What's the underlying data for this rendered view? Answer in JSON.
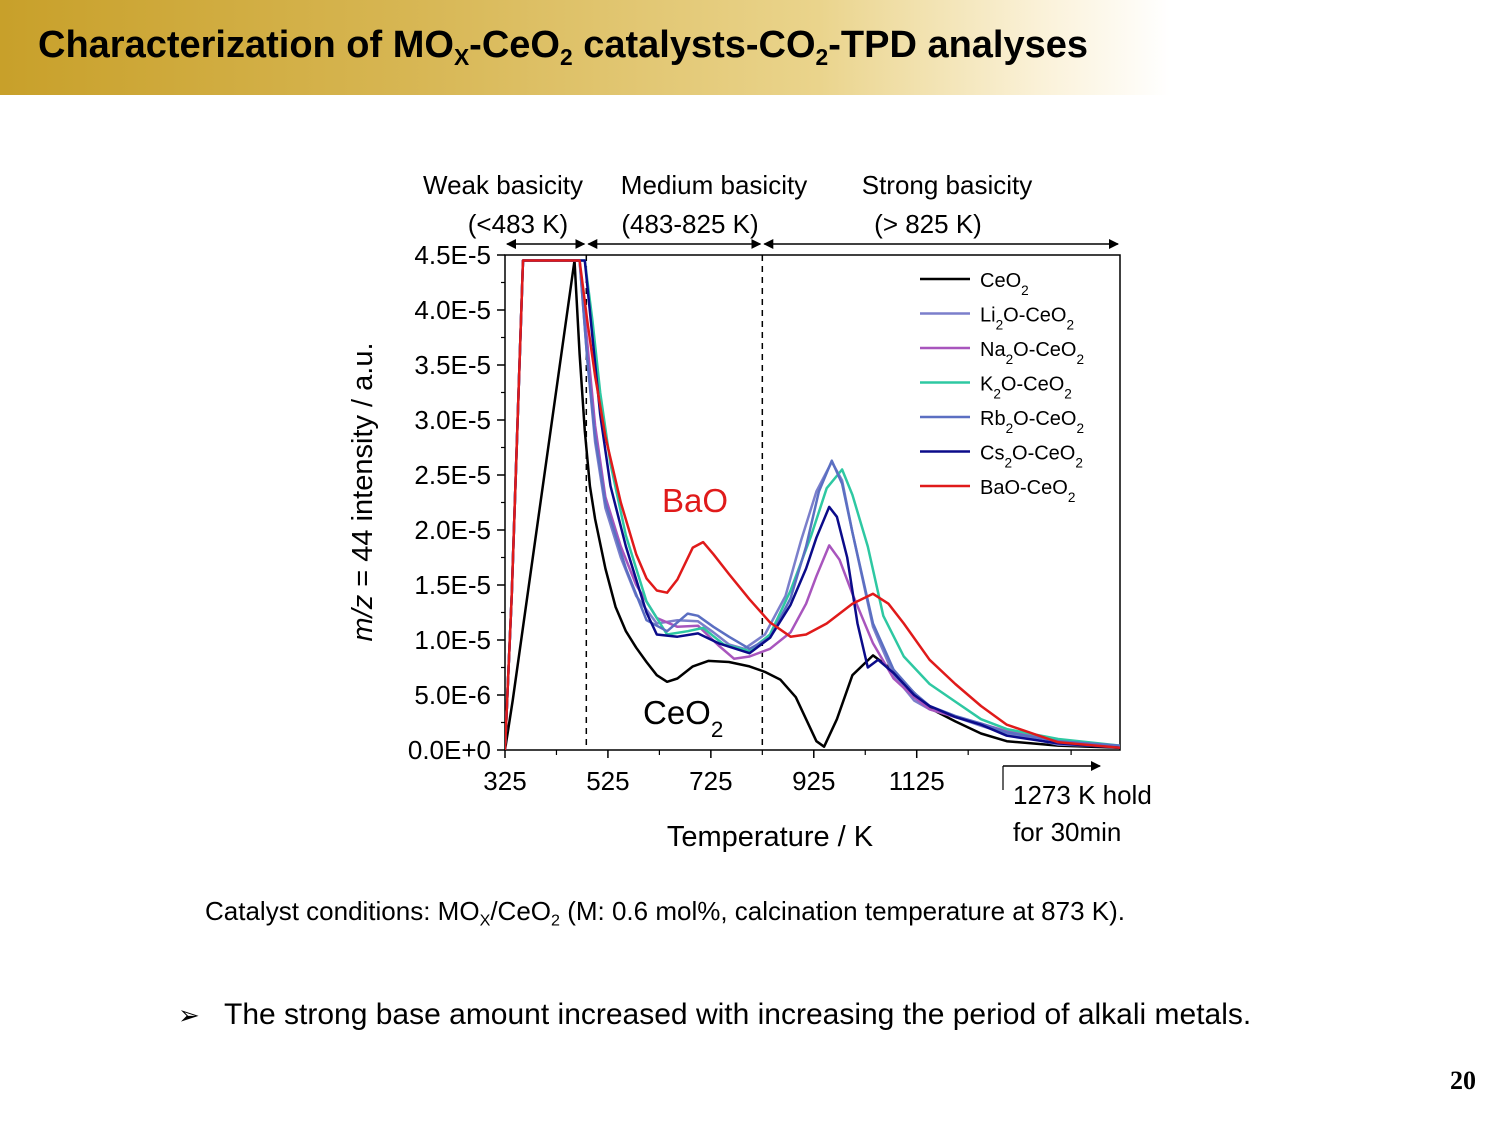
{
  "slide": {
    "title": {
      "part1": "Characterization of MO",
      "sub1": "X",
      "part2": "-CeO",
      "sub2": "2",
      "part3": " catalysts-CO",
      "sub3": "2",
      "part4": "-TPD analyses"
    },
    "conditions": {
      "part1": "Catalyst conditions: MO",
      "sub1": "X",
      "part2": "/CeO",
      "sub2": "2",
      "part3": " (M: 0.6 mol%, calcination temperature at 873 K)."
    },
    "bullet_marker": "➢",
    "bullet": "The strong base amount increased with increasing the period of alkali metals.",
    "page_number": "20"
  },
  "chart_data": {
    "type": "line",
    "ylabel_italic": "m/z",
    "ylabel_rest": " = 44 intensity / a.u.",
    "xlabel": "Temperature / K",
    "xlim": [
      325,
      1520
    ],
    "ylim": [
      0,
      4.5e-05
    ],
    "x_ticks": [
      325,
      525,
      725,
      925,
      1125
    ],
    "x_tick_labels": [
      "325",
      "525",
      "725",
      "925",
      "1125"
    ],
    "y_ticks": [
      0,
      5e-06,
      1e-05,
      1.5e-05,
      2e-05,
      2.5e-05,
      3e-05,
      3.5e-05,
      4e-05,
      4.5e-05
    ],
    "y_tick_labels": [
      "0.0E+0",
      "5.0E-6",
      "1.0E-5",
      "1.5E-5",
      "2.0E-5",
      "2.5E-5",
      "3.0E-5",
      "3.5E-5",
      "4.0E-5",
      "4.5E-5"
    ],
    "region_boundaries": [
      483,
      825
    ],
    "regions": [
      {
        "name": "Weak basicity",
        "range": "(<483 K)"
      },
      {
        "name": "Medium basicity",
        "range": "(483-825 K)"
      },
      {
        "name": "Strong basicity",
        "range": "(> 825 K)"
      }
    ],
    "annotations": {
      "bao": "BaO",
      "ceo2": "CeO",
      "ceo2_sub": "2",
      "hold_line1": "1273 K hold",
      "hold_line2": "for 30min"
    },
    "legend_position": "top-right",
    "series": [
      {
        "name": "CeO2",
        "label": "CeO",
        "sub": "2",
        "color": "#000000",
        "points": [
          [
            325,
            0
          ],
          [
            340,
            4.5e-06
          ],
          [
            460,
            4.45e-05
          ],
          [
            470,
            3.6e-05
          ],
          [
            480,
            2.9e-05
          ],
          [
            490,
            2.4e-05
          ],
          [
            500,
            2.1e-05
          ],
          [
            520,
            1.65e-05
          ],
          [
            540,
            1.3e-05
          ],
          [
            560,
            1.08e-05
          ],
          [
            580,
            9.3e-06
          ],
          [
            600,
            8e-06
          ],
          [
            620,
            6.8e-06
          ],
          [
            640,
            6.2e-06
          ],
          [
            660,
            6.5e-06
          ],
          [
            690,
            7.6e-06
          ],
          [
            720,
            8.1e-06
          ],
          [
            760,
            8e-06
          ],
          [
            800,
            7.6e-06
          ],
          [
            830,
            7.1e-06
          ],
          [
            860,
            6.4e-06
          ],
          [
            890,
            4.8e-06
          ],
          [
            910,
            2.8e-06
          ],
          [
            930,
            8e-07
          ],
          [
            945,
            3e-07
          ],
          [
            970,
            2.8e-06
          ],
          [
            1000,
            6.8e-06
          ],
          [
            1040,
            8.6e-06
          ],
          [
            1080,
            7.2e-06
          ],
          [
            1120,
            5.2e-06
          ],
          [
            1150,
            3.8e-06
          ],
          [
            1200,
            2.6e-06
          ],
          [
            1250,
            1.5e-06
          ],
          [
            1300,
            8e-07
          ],
          [
            1400,
            4e-07
          ],
          [
            1520,
            2e-07
          ]
        ]
      },
      {
        "name": "Li2O-CeO2",
        "label": "Li",
        "sub": "2",
        "label_rest": "O-CeO",
        "sub2": "2",
        "color": "#7b7fcb",
        "points": [
          [
            325,
            0
          ],
          [
            338,
            1.4e-05
          ],
          [
            360,
            4.45e-05
          ],
          [
            470,
            4.45e-05
          ],
          [
            485,
            3.55e-05
          ],
          [
            500,
            2.8e-05
          ],
          [
            520,
            2.2e-05
          ],
          [
            550,
            1.75e-05
          ],
          [
            580,
            1.4e-05
          ],
          [
            620,
            1.15e-05
          ],
          [
            660,
            1.18e-05
          ],
          [
            700,
            1.17e-05
          ],
          [
            730,
            1.07e-05
          ],
          [
            760,
            9.6e-06
          ],
          [
            790,
            9.2e-06
          ],
          [
            830,
            1.05e-05
          ],
          [
            870,
            1.4e-05
          ],
          [
            900,
            1.9e-05
          ],
          [
            930,
            2.35e-05
          ],
          [
            960,
            2.62e-05
          ],
          [
            980,
            2.45e-05
          ],
          [
            1000,
            1.98e-05
          ],
          [
            1040,
            1.12e-05
          ],
          [
            1080,
            6.8e-06
          ],
          [
            1120,
            4.5e-06
          ],
          [
            1150,
            3.7e-06
          ],
          [
            1200,
            3e-06
          ],
          [
            1250,
            2.2e-06
          ],
          [
            1300,
            1.5e-06
          ],
          [
            1400,
            5e-07
          ],
          [
            1520,
            3e-07
          ]
        ]
      },
      {
        "name": "Na2O-CeO2",
        "label": "Na",
        "sub": "2",
        "label_rest": "O-CeO",
        "sub2": "2",
        "color": "#a855bd",
        "points": [
          [
            325,
            0
          ],
          [
            338,
            1.4e-05
          ],
          [
            360,
            4.45e-05
          ],
          [
            470,
            4.45e-05
          ],
          [
            485,
            3.7e-05
          ],
          [
            500,
            2.95e-05
          ],
          [
            520,
            2.3e-05
          ],
          [
            550,
            1.85e-05
          ],
          [
            580,
            1.5e-05
          ],
          [
            620,
            1.2e-05
          ],
          [
            660,
            1.12e-05
          ],
          [
            700,
            1.13e-05
          ],
          [
            740,
            9.5e-06
          ],
          [
            770,
            8.3e-06
          ],
          [
            800,
            8.5e-06
          ],
          [
            840,
            9.2e-06
          ],
          [
            880,
            1.07e-05
          ],
          [
            910,
            1.33e-05
          ],
          [
            930,
            1.58e-05
          ],
          [
            955,
            1.86e-05
          ],
          [
            975,
            1.73e-05
          ],
          [
            1000,
            1.42e-05
          ],
          [
            1040,
            9.7e-06
          ],
          [
            1080,
            6.5e-06
          ],
          [
            1120,
            4.8e-06
          ],
          [
            1150,
            3.7e-06
          ],
          [
            1200,
            3e-06
          ],
          [
            1250,
            2.4e-06
          ],
          [
            1300,
            1.7e-06
          ],
          [
            1400,
            9e-07
          ],
          [
            1520,
            3e-07
          ]
        ]
      },
      {
        "name": "K2O-CeO2",
        "label": "K",
        "sub": "2",
        "label_rest": "O-CeO",
        "sub2": "2",
        "color": "#2ec8a2",
        "points": [
          [
            325,
            0
          ],
          [
            338,
            1.4e-05
          ],
          [
            360,
            4.45e-05
          ],
          [
            480,
            4.45e-05
          ],
          [
            495,
            3.9e-05
          ],
          [
            510,
            3.25e-05
          ],
          [
            530,
            2.6e-05
          ],
          [
            560,
            1.95e-05
          ],
          [
            600,
            1.35e-05
          ],
          [
            640,
            1.05e-05
          ],
          [
            680,
            1.08e-05
          ],
          [
            710,
            1.11e-05
          ],
          [
            750,
            9.6e-06
          ],
          [
            800,
            9e-06
          ],
          [
            840,
            1.05e-05
          ],
          [
            880,
            1.45e-05
          ],
          [
            920,
            1.95e-05
          ],
          [
            950,
            2.38e-05
          ],
          [
            980,
            2.55e-05
          ],
          [
            1000,
            2.32e-05
          ],
          [
            1030,
            1.85e-05
          ],
          [
            1060,
            1.22e-05
          ],
          [
            1100,
            8.5e-06
          ],
          [
            1150,
            6e-06
          ],
          [
            1200,
            4.4e-06
          ],
          [
            1250,
            2.8e-06
          ],
          [
            1300,
            1.9e-06
          ],
          [
            1400,
            1e-06
          ],
          [
            1520,
            4e-07
          ]
        ]
      },
      {
        "name": "Rb2O-CeO2",
        "label": "Rb",
        "sub": "2",
        "label_rest": "O-CeO",
        "sub2": "2",
        "color": "#5b6fc2",
        "points": [
          [
            325,
            0
          ],
          [
            338,
            1.4e-05
          ],
          [
            360,
            4.45e-05
          ],
          [
            470,
            4.45e-05
          ],
          [
            485,
            3.55e-05
          ],
          [
            500,
            2.85e-05
          ],
          [
            520,
            2.25e-05
          ],
          [
            560,
            1.65e-05
          ],
          [
            600,
            1.18e-05
          ],
          [
            640,
            1.08e-05
          ],
          [
            680,
            1.24e-05
          ],
          [
            700,
            1.22e-05
          ],
          [
            730,
            1.12e-05
          ],
          [
            760,
            1.03e-05
          ],
          [
            800,
            9.2e-06
          ],
          [
            840,
            1.02e-05
          ],
          [
            880,
            1.38e-05
          ],
          [
            910,
            1.85e-05
          ],
          [
            935,
            2.35e-05
          ],
          [
            960,
            2.63e-05
          ],
          [
            980,
            2.42e-05
          ],
          [
            1000,
            1.98e-05
          ],
          [
            1040,
            1.15e-05
          ],
          [
            1080,
            7.3e-06
          ],
          [
            1120,
            5.2e-06
          ],
          [
            1150,
            4e-06
          ],
          [
            1200,
            3.1e-06
          ],
          [
            1250,
            2.4e-06
          ],
          [
            1300,
            1.6e-06
          ],
          [
            1400,
            8e-07
          ],
          [
            1520,
            4e-07
          ]
        ]
      },
      {
        "name": "Cs2O-CeO2",
        "label": "Cs",
        "sub": "2",
        "label_rest": "O-CeO",
        "sub2": "2",
        "color": "#0b0b8a",
        "points": [
          [
            325,
            0
          ],
          [
            338,
            1.4e-05
          ],
          [
            360,
            4.45e-05
          ],
          [
            480,
            4.45e-05
          ],
          [
            495,
            3.75e-05
          ],
          [
            510,
            3.05e-05
          ],
          [
            530,
            2.4e-05
          ],
          [
            560,
            1.85e-05
          ],
          [
            600,
            1.25e-05
          ],
          [
            620,
            1.05e-05
          ],
          [
            660,
            1.03e-05
          ],
          [
            700,
            1.06e-05
          ],
          [
            740,
            9.7e-06
          ],
          [
            800,
            8.8e-06
          ],
          [
            840,
            1.02e-05
          ],
          [
            880,
            1.32e-05
          ],
          [
            910,
            1.65e-05
          ],
          [
            930,
            1.93e-05
          ],
          [
            955,
            2.21e-05
          ],
          [
            970,
            2.12e-05
          ],
          [
            990,
            1.75e-05
          ],
          [
            1010,
            1.15e-05
          ],
          [
            1030,
            7.5e-06
          ],
          [
            1050,
            8.2e-06
          ],
          [
            1080,
            7e-06
          ],
          [
            1120,
            5e-06
          ],
          [
            1150,
            4e-06
          ],
          [
            1200,
            3e-06
          ],
          [
            1250,
            2.3e-06
          ],
          [
            1300,
            1.3e-06
          ],
          [
            1400,
            6e-07
          ],
          [
            1520,
            2e-07
          ]
        ]
      },
      {
        "name": "BaO-CeO2",
        "label": "BaO-CeO",
        "sub": "2",
        "color": "#e01a1a",
        "points": [
          [
            325,
            0
          ],
          [
            338,
            1.4e-05
          ],
          [
            360,
            4.45e-05
          ],
          [
            470,
            4.45e-05
          ],
          [
            485,
            3.9e-05
          ],
          [
            500,
            3.4e-05
          ],
          [
            520,
            2.85e-05
          ],
          [
            550,
            2.25e-05
          ],
          [
            580,
            1.78e-05
          ],
          [
            600,
            1.56e-05
          ],
          [
            620,
            1.45e-05
          ],
          [
            640,
            1.43e-05
          ],
          [
            660,
            1.55e-05
          ],
          [
            690,
            1.84e-05
          ],
          [
            710,
            1.89e-05
          ],
          [
            730,
            1.78e-05
          ],
          [
            760,
            1.6e-05
          ],
          [
            800,
            1.37e-05
          ],
          [
            840,
            1.16e-05
          ],
          [
            880,
            1.03e-05
          ],
          [
            910,
            1.05e-05
          ],
          [
            950,
            1.15e-05
          ],
          [
            1000,
            1.33e-05
          ],
          [
            1040,
            1.42e-05
          ],
          [
            1070,
            1.33e-05
          ],
          [
            1100,
            1.15e-05
          ],
          [
            1150,
            8.2e-06
          ],
          [
            1200,
            6e-06
          ],
          [
            1250,
            4e-06
          ],
          [
            1300,
            2.3e-06
          ],
          [
            1400,
            7e-07
          ],
          [
            1520,
            2e-07
          ]
        ]
      }
    ]
  }
}
